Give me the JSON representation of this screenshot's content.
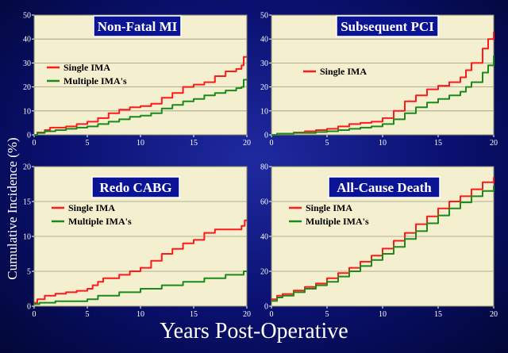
{
  "xlabel": "Years Post-Operative",
  "ylabel": "Cumulative Incidence (%)",
  "colors": {
    "single": "#ff1a1a",
    "multiple": "#1a8a1a",
    "plot_bg": "#f4efcf",
    "title_bg": "#0c1496"
  },
  "chart_data": [
    {
      "type": "line",
      "title": "Non-Fatal MI",
      "x_ticks": [
        0,
        5,
        10,
        15,
        20
      ],
      "y_ticks": [
        0,
        10,
        20,
        30,
        40,
        50
      ],
      "xlim": [
        0,
        20
      ],
      "ylim": [
        0,
        50
      ],
      "grid": true,
      "legend": "left",
      "series": [
        {
          "name": "Single IMA",
          "color": "#ff1a1a",
          "points": [
            [
              0,
              0
            ],
            [
              0.3,
              1
            ],
            [
              1,
              2
            ],
            [
              1.5,
              3
            ],
            [
              3,
              3.5
            ],
            [
              4,
              4.5
            ],
            [
              5,
              5.5
            ],
            [
              6,
              7
            ],
            [
              7,
              9
            ],
            [
              8,
              10.5
            ],
            [
              9,
              11.5
            ],
            [
              10,
              12
            ],
            [
              11,
              13
            ],
            [
              12,
              15.5
            ],
            [
              13,
              17.5
            ],
            [
              14,
              20
            ],
            [
              15,
              21
            ],
            [
              16,
              22
            ],
            [
              17,
              24.5
            ],
            [
              18,
              26.5
            ],
            [
              19,
              27.5
            ],
            [
              19.5,
              29
            ],
            [
              19.7,
              32.5
            ],
            [
              20,
              32.5
            ]
          ]
        },
        {
          "name": "Multiple IMA's",
          "color": "#1a8a1a",
          "points": [
            [
              0,
              0
            ],
            [
              0.3,
              0.8
            ],
            [
              1,
              1.5
            ],
            [
              2,
              2
            ],
            [
              3,
              2.5
            ],
            [
              4,
              3
            ],
            [
              5,
              3.5
            ],
            [
              6,
              4.5
            ],
            [
              7,
              5.5
            ],
            [
              8,
              6.5
            ],
            [
              9,
              7.5
            ],
            [
              10,
              8
            ],
            [
              11,
              9
            ],
            [
              12,
              11
            ],
            [
              13,
              12.5
            ],
            [
              14,
              14
            ],
            [
              15,
              15
            ],
            [
              16,
              16.5
            ],
            [
              17,
              17.5
            ],
            [
              18,
              18.5
            ],
            [
              19,
              19.5
            ],
            [
              19.5,
              20
            ],
            [
              19.7,
              23
            ],
            [
              20,
              23
            ]
          ]
        }
      ]
    },
    {
      "type": "line",
      "title": "Subsequent PCI",
      "x_ticks": [
        0,
        5,
        10,
        15,
        20
      ],
      "y_ticks": [
        0,
        10,
        20,
        30,
        40,
        50
      ],
      "xlim": [
        0,
        20
      ],
      "ylim": [
        0,
        50
      ],
      "grid": true,
      "legend": "left",
      "series": [
        {
          "name": "Single IMA",
          "color": "#ff1a1a",
          "points": [
            [
              0,
              0
            ],
            [
              0.5,
              0.5
            ],
            [
              2,
              1
            ],
            [
              3,
              1.5
            ],
            [
              4,
              2
            ],
            [
              5,
              2.5
            ],
            [
              6,
              3.5
            ],
            [
              7,
              4.5
            ],
            [
              8,
              5
            ],
            [
              9,
              5.5
            ],
            [
              10,
              7
            ],
            [
              11,
              10
            ],
            [
              12,
              14
            ],
            [
              13,
              16.5
            ],
            [
              14,
              19
            ],
            [
              15,
              20.5
            ],
            [
              16,
              22
            ],
            [
              17,
              24
            ],
            [
              17.5,
              27
            ],
            [
              18,
              30
            ],
            [
              19,
              36
            ],
            [
              19.5,
              40
            ],
            [
              20,
              43
            ]
          ]
        },
        {
          "name": "Multiple IMA's",
          "color": "#1a8a1a",
          "points": [
            [
              0,
              0
            ],
            [
              0.5,
              0.5
            ],
            [
              2,
              0.8
            ],
            [
              4,
              1.2
            ],
            [
              5,
              1.5
            ],
            [
              6,
              2
            ],
            [
              7,
              2.5
            ],
            [
              8,
              3
            ],
            [
              9,
              3.5
            ],
            [
              10,
              4.5
            ],
            [
              11,
              6.5
            ],
            [
              12,
              9
            ],
            [
              13,
              11.5
            ],
            [
              14,
              13.5
            ],
            [
              15,
              15
            ],
            [
              16,
              16.5
            ],
            [
              17,
              18
            ],
            [
              17.5,
              20
            ],
            [
              18,
              22
            ],
            [
              19,
              26
            ],
            [
              19.5,
              29
            ],
            [
              20,
              33
            ]
          ]
        }
      ]
    },
    {
      "type": "line",
      "title": "Redo CABG",
      "x_ticks": [
        0,
        5,
        10,
        15,
        20
      ],
      "y_ticks": [
        0,
        5,
        10,
        15,
        20
      ],
      "xlim": [
        0,
        20
      ],
      "ylim": [
        0,
        20
      ],
      "grid": true,
      "legend": "left",
      "series": [
        {
          "name": "Single IMA",
          "color": "#ff1a1a",
          "points": [
            [
              0,
              0.5
            ],
            [
              0.3,
              1
            ],
            [
              1,
              1.5
            ],
            [
              2,
              1.8
            ],
            [
              3,
              2
            ],
            [
              4,
              2.2
            ],
            [
              5,
              2.5
            ],
            [
              5.5,
              3
            ],
            [
              6,
              3.5
            ],
            [
              6.5,
              4
            ],
            [
              7,
              4
            ],
            [
              8,
              4.5
            ],
            [
              9,
              5
            ],
            [
              10,
              5.5
            ],
            [
              11,
              6.5
            ],
            [
              12,
              7.5
            ],
            [
              13,
              8.2
            ],
            [
              14,
              9
            ],
            [
              15,
              9.5
            ],
            [
              16,
              10.5
            ],
            [
              17,
              11
            ],
            [
              18,
              11
            ],
            [
              19,
              11
            ],
            [
              19.5,
              11.5
            ],
            [
              19.8,
              12.3
            ],
            [
              20,
              12.3
            ]
          ]
        },
        {
          "name": "Multiple IMA's",
          "color": "#1a8a1a",
          "points": [
            [
              0,
              0.3
            ],
            [
              0.5,
              0.5
            ],
            [
              2,
              0.7
            ],
            [
              5,
              1
            ],
            [
              6,
              1.5
            ],
            [
              8,
              2
            ],
            [
              10,
              2.5
            ],
            [
              12,
              3
            ],
            [
              14,
              3.5
            ],
            [
              16,
              4
            ],
            [
              18,
              4.5
            ],
            [
              19.5,
              4.5
            ],
            [
              19.7,
              5
            ],
            [
              20,
              5
            ]
          ]
        }
      ]
    },
    {
      "type": "line",
      "title": "All-Cause Death",
      "x_ticks": [
        0,
        5,
        10,
        15,
        20
      ],
      "y_ticks": [
        0,
        20,
        40,
        60,
        80
      ],
      "xlim": [
        0,
        20
      ],
      "ylim": [
        0,
        80
      ],
      "grid": true,
      "legend": "left",
      "series": [
        {
          "name": "Single IMA",
          "color": "#ff1a1a",
          "points": [
            [
              0,
              4
            ],
            [
              0.5,
              6
            ],
            [
              1,
              7
            ],
            [
              2,
              9
            ],
            [
              3,
              11
            ],
            [
              4,
              13
            ],
            [
              5,
              16
            ],
            [
              6,
              19
            ],
            [
              7,
              22
            ],
            [
              8,
              25.5
            ],
            [
              9,
              29
            ],
            [
              10,
              33
            ],
            [
              11,
              37.5
            ],
            [
              12,
              42
            ],
            [
              13,
              47
            ],
            [
              14,
              51.5
            ],
            [
              15,
              56
            ],
            [
              16,
              60
            ],
            [
              17,
              63
            ],
            [
              18,
              67
            ],
            [
              19,
              71
            ],
            [
              20,
              74
            ]
          ]
        },
        {
          "name": "Multiple IMA's",
          "color": "#1a8a1a",
          "points": [
            [
              0,
              3
            ],
            [
              0.5,
              5
            ],
            [
              1,
              6
            ],
            [
              2,
              8
            ],
            [
              3,
              10
            ],
            [
              4,
              12
            ],
            [
              5,
              14
            ],
            [
              6,
              17
            ],
            [
              7,
              20
            ],
            [
              8,
              23
            ],
            [
              9,
              26.5
            ],
            [
              10,
              30
            ],
            [
              11,
              34
            ],
            [
              12,
              38.5
            ],
            [
              13,
              43
            ],
            [
              14,
              47.5
            ],
            [
              15,
              52
            ],
            [
              16,
              56
            ],
            [
              17,
              59.5
            ],
            [
              18,
              63
            ],
            [
              19,
              66
            ],
            [
              20,
              69
            ]
          ]
        }
      ]
    }
  ]
}
